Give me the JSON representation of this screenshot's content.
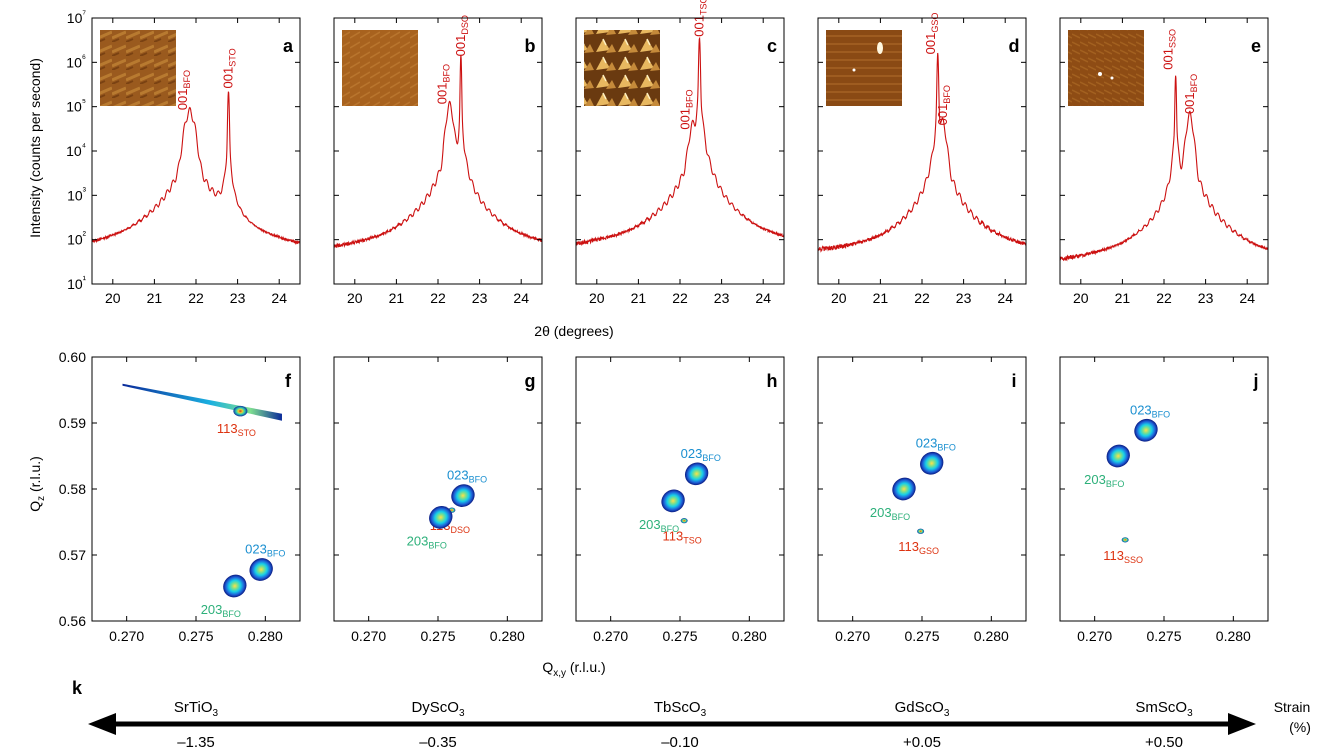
{
  "figure": {
    "top_ylabel": "Intensity (counts per second)",
    "top_xlabel": "2θ (degrees)",
    "bottom_ylabel": "Q",
    "bottom_ylabel_sub": "z",
    "bottom_ylabel_unit": " (r.l.u.)",
    "bottom_xlabel": "Q",
    "bottom_xlabel_sub": "x,y",
    "bottom_xlabel_unit": " (r.l.u.)",
    "colors": {
      "xrd_line": "#cc1111",
      "bfo_023_label": "#1a8fd0",
      "bfo_203_label": "#2db07a",
      "substrate_label": "#dd3311"
    }
  },
  "chart_data": [
    {
      "type": "line",
      "panel": "a",
      "ylim": [
        10,
        10000000
      ],
      "yscale": "log",
      "yticks": [
        "10¹",
        "10²",
        "10³",
        "10⁴",
        "10⁵",
        "10⁶",
        "10⁷"
      ],
      "xlim": [
        19.5,
        24.5
      ],
      "xticks": [
        "20",
        "21",
        "22",
        "23",
        "24"
      ],
      "baseline": 33,
      "peaks": [
        {
          "x": 21.85,
          "y": 55000,
          "width": 0.22,
          "label": "001",
          "sub": "BFO"
        },
        {
          "x": 22.78,
          "y": 170000,
          "width": 0.03,
          "label": "001",
          "sub": "STO"
        }
      ]
    },
    {
      "type": "line",
      "panel": "b",
      "ylim": [
        10,
        10000000
      ],
      "yscale": "log",
      "xlim": [
        19.5,
        24.5
      ],
      "xticks": [
        "20",
        "21",
        "22",
        "23",
        "24"
      ],
      "baseline": 38,
      "peaks": [
        {
          "x": 22.28,
          "y": 75000,
          "width": 0.15,
          "label": "001",
          "sub": "BFO"
        },
        {
          "x": 22.55,
          "y": 900000,
          "width": 0.025,
          "label": "001",
          "sub": "DSO"
        }
      ]
    },
    {
      "type": "line",
      "panel": "c",
      "ylim": [
        10,
        10000000
      ],
      "yscale": "log",
      "xlim": [
        19.5,
        24.5
      ],
      "xticks": [
        "20",
        "21",
        "22",
        "23",
        "24"
      ],
      "baseline": 45,
      "peaks": [
        {
          "x": 22.3,
          "y": 20000,
          "width": 0.15,
          "label": "001",
          "sub": "BFO"
        },
        {
          "x": 22.47,
          "y": 2500000,
          "width": 0.03,
          "label": "001",
          "sub": "TSO"
        }
      ]
    },
    {
      "type": "line",
      "panel": "d",
      "ylim": [
        10,
        10000000
      ],
      "yscale": "log",
      "xlim": [
        19.5,
        24.5
      ],
      "xticks": [
        "20",
        "21",
        "22",
        "23",
        "24"
      ],
      "baseline": 40,
      "peaks": [
        {
          "x": 22.38,
          "y": 1000000,
          "width": 0.03,
          "label": "001",
          "sub": "GSO"
        },
        {
          "x": 22.5,
          "y": 25000,
          "width": 0.15,
          "label": "001",
          "sub": "BFO"
        }
      ]
    },
    {
      "type": "line",
      "panel": "e",
      "ylim": [
        10,
        10000000
      ],
      "yscale": "log",
      "xlim": [
        19.5,
        24.5
      ],
      "xticks": [
        "20",
        "21",
        "22",
        "23",
        "24"
      ],
      "baseline": 20,
      "peaks": [
        {
          "x": 22.28,
          "y": 450000,
          "width": 0.025,
          "label": "001",
          "sub": "SSO"
        },
        {
          "x": 22.62,
          "y": 45000,
          "width": 0.15,
          "label": "001",
          "sub": "BFO"
        }
      ]
    },
    {
      "type": "scatter",
      "panel": "f",
      "xlim": [
        0.2675,
        0.2825
      ],
      "ylim": [
        0.56,
        0.6
      ],
      "xticks": [
        "0.270",
        "0.275",
        "0.280"
      ],
      "yticks": [
        "0.56",
        "0.57",
        "0.58",
        "0.59",
        "0.60"
      ],
      "streak": {
        "x1": 0.2697,
        "y1": 0.5958,
        "x2": 0.2812,
        "y2": 0.5908
      },
      "spots": [
        {
          "name": "substrate",
          "x": 0.2782,
          "y": 0.5918,
          "label": "113",
          "sub": "STO"
        },
        {
          "name": "023",
          "x": 0.2797,
          "y": 0.5678,
          "label": "023",
          "sub": "BFO"
        },
        {
          "name": "203",
          "x": 0.2778,
          "y": 0.5653,
          "label": "203",
          "sub": "BFO"
        }
      ]
    },
    {
      "type": "scatter",
      "panel": "g",
      "xlim": [
        0.2675,
        0.2825
      ],
      "ylim": [
        0.56,
        0.6
      ],
      "xticks": [
        "0.270",
        "0.275",
        "0.280"
      ],
      "spots": [
        {
          "name": "023",
          "x": 0.2768,
          "y": 0.579,
          "label": "023",
          "sub": "BFO"
        },
        {
          "name": "substrate",
          "x": 0.276,
          "y": 0.5768,
          "label": "113",
          "sub": "DSO"
        },
        {
          "name": "203",
          "x": 0.2752,
          "y": 0.5757,
          "label": "203",
          "sub": "BFO"
        }
      ]
    },
    {
      "type": "scatter",
      "panel": "h",
      "xlim": [
        0.2675,
        0.2825
      ],
      "ylim": [
        0.56,
        0.6
      ],
      "xticks": [
        "0.270",
        "0.275",
        "0.280"
      ],
      "spots": [
        {
          "name": "023",
          "x": 0.2762,
          "y": 0.5823,
          "label": "023",
          "sub": "BFO"
        },
        {
          "name": "203",
          "x": 0.2745,
          "y": 0.5782,
          "label": "203",
          "sub": "BFO"
        },
        {
          "name": "substrate",
          "x": 0.2753,
          "y": 0.5752,
          "label": "113",
          "sub": "TSO"
        }
      ]
    },
    {
      "type": "scatter",
      "panel": "i",
      "xlim": [
        0.2675,
        0.2825
      ],
      "ylim": [
        0.56,
        0.6
      ],
      "xticks": [
        "0.270",
        "0.275",
        "0.280"
      ],
      "spots": [
        {
          "name": "023",
          "x": 0.2757,
          "y": 0.5839,
          "label": "023",
          "sub": "BFO"
        },
        {
          "name": "203",
          "x": 0.2737,
          "y": 0.58,
          "label": "203",
          "sub": "BFO"
        },
        {
          "name": "substrate",
          "x": 0.2749,
          "y": 0.5736,
          "label": "113",
          "sub": "GSO"
        }
      ]
    },
    {
      "type": "scatter",
      "panel": "j",
      "xlim": [
        0.2675,
        0.2825
      ],
      "ylim": [
        0.56,
        0.6
      ],
      "xticks": [
        "0.270",
        "0.275",
        "0.280"
      ],
      "spots": [
        {
          "name": "023",
          "x": 0.2737,
          "y": 0.5889,
          "label": "023",
          "sub": "BFO"
        },
        {
          "name": "203",
          "x": 0.2717,
          "y": 0.585,
          "label": "203",
          "sub": "BFO"
        },
        {
          "name": "substrate",
          "x": 0.2722,
          "y": 0.5723,
          "label": "113",
          "sub": "SSO"
        }
      ]
    }
  ],
  "strain_axis": {
    "panel": "k",
    "label": "Strain",
    "unit": "(%)",
    "substrates": [
      {
        "name": "SrTiO",
        "sub": "3",
        "strain": "–1.35"
      },
      {
        "name": "DyScO",
        "sub": "3",
        "strain": "–0.35"
      },
      {
        "name": "TbScO",
        "sub": "3",
        "strain": "–0.10"
      },
      {
        "name": "GdScO",
        "sub": "3",
        "strain": "+0.05"
      },
      {
        "name": "SmScO",
        "sub": "3",
        "strain": "+0.50"
      }
    ]
  }
}
